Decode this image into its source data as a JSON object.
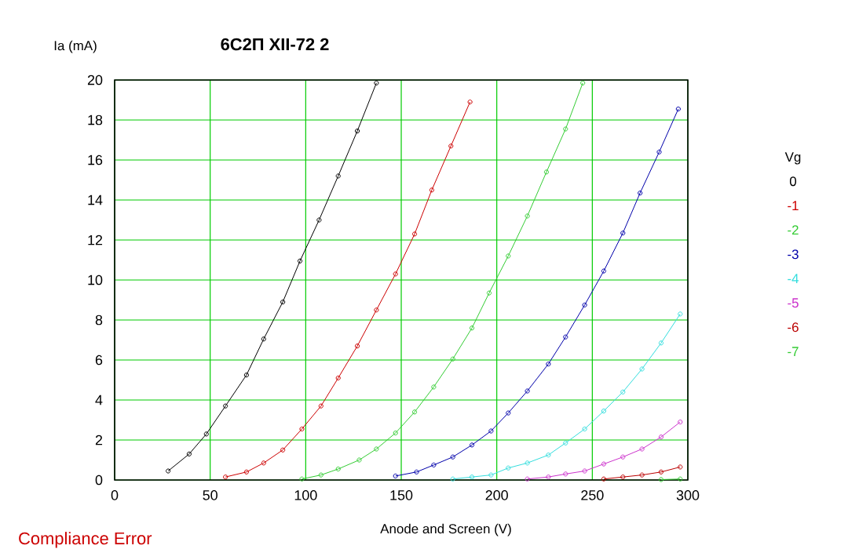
{
  "chart_data": {
    "type": "line",
    "title": "6С2П XII-72 2",
    "xlabel": "Anode and Screen (V)",
    "ylabel": "Ia (mA)",
    "legend_title": "Vg",
    "annotations": [
      "Compliance Error"
    ],
    "xlim": [
      0,
      300
    ],
    "ylim": [
      0,
      20
    ],
    "xticks": [
      0,
      50,
      100,
      150,
      200,
      250,
      300
    ],
    "yticks": [
      0,
      2,
      4,
      6,
      8,
      10,
      12,
      14,
      16,
      18,
      20
    ],
    "grid": true,
    "legend": "right",
    "marker": "circle",
    "line_style": "solid",
    "series": [
      {
        "name": "0",
        "color": "#000000",
        "x": [
          28,
          39,
          48,
          58,
          69,
          78,
          88,
          97,
          107,
          117,
          127,
          137
        ],
        "values": [
          0.45,
          1.3,
          2.3,
          3.7,
          5.25,
          7.05,
          8.9,
          10.95,
          13.0,
          15.2,
          17.45,
          19.85
        ]
      },
      {
        "name": "-1",
        "color": "#cc0000",
        "x": [
          58,
          69,
          78,
          88,
          98,
          108,
          117,
          127,
          137,
          147,
          157,
          166,
          176,
          186
        ],
        "values": [
          0.15,
          0.4,
          0.85,
          1.5,
          2.55,
          3.7,
          5.1,
          6.7,
          8.5,
          10.3,
          12.3,
          14.5,
          16.7,
          18.9
        ]
      },
      {
        "name": "-2",
        "color": "#33cc33",
        "x": [
          98,
          108,
          117,
          128,
          137,
          147,
          157,
          167,
          177,
          187,
          196,
          206,
          216,
          226,
          236,
          245
        ],
        "values": [
          0.05,
          0.25,
          0.55,
          1.0,
          1.55,
          2.35,
          3.4,
          4.65,
          6.05,
          7.6,
          9.35,
          11.2,
          13.2,
          15.4,
          17.55,
          19.85
        ]
      },
      {
        "name": "-3",
        "color": "#0000aa",
        "x": [
          147,
          158,
          167,
          177,
          187,
          197,
          206,
          216,
          227,
          236,
          246,
          256,
          266,
          275,
          285,
          295
        ],
        "values": [
          0.2,
          0.4,
          0.75,
          1.15,
          1.75,
          2.45,
          3.35,
          4.45,
          5.8,
          7.15,
          8.75,
          10.45,
          12.35,
          14.35,
          16.4,
          18.55
        ]
      },
      {
        "name": "-4",
        "color": "#33dddd",
        "x": [
          177,
          187,
          197,
          206,
          216,
          227,
          236,
          246,
          256,
          266,
          276,
          286,
          296
        ],
        "values": [
          0.05,
          0.15,
          0.25,
          0.6,
          0.85,
          1.25,
          1.85,
          2.55,
          3.45,
          4.4,
          5.55,
          6.85,
          8.3
        ]
      },
      {
        "name": "-5",
        "color": "#cc33cc",
        "x": [
          216,
          227,
          236,
          246,
          256,
          266,
          276,
          286,
          296
        ],
        "values": [
          0.05,
          0.15,
          0.3,
          0.45,
          0.8,
          1.15,
          1.55,
          2.15,
          2.9
        ]
      },
      {
        "name": "-6",
        "color": "#bb0000",
        "x": [
          256,
          266,
          276,
          286,
          296
        ],
        "values": [
          0.05,
          0.15,
          0.25,
          0.4,
          0.65
        ]
      },
      {
        "name": "-7",
        "color": "#33cc33",
        "x": [
          286,
          296
        ],
        "values": [
          0.02,
          0.05
        ]
      }
    ]
  }
}
